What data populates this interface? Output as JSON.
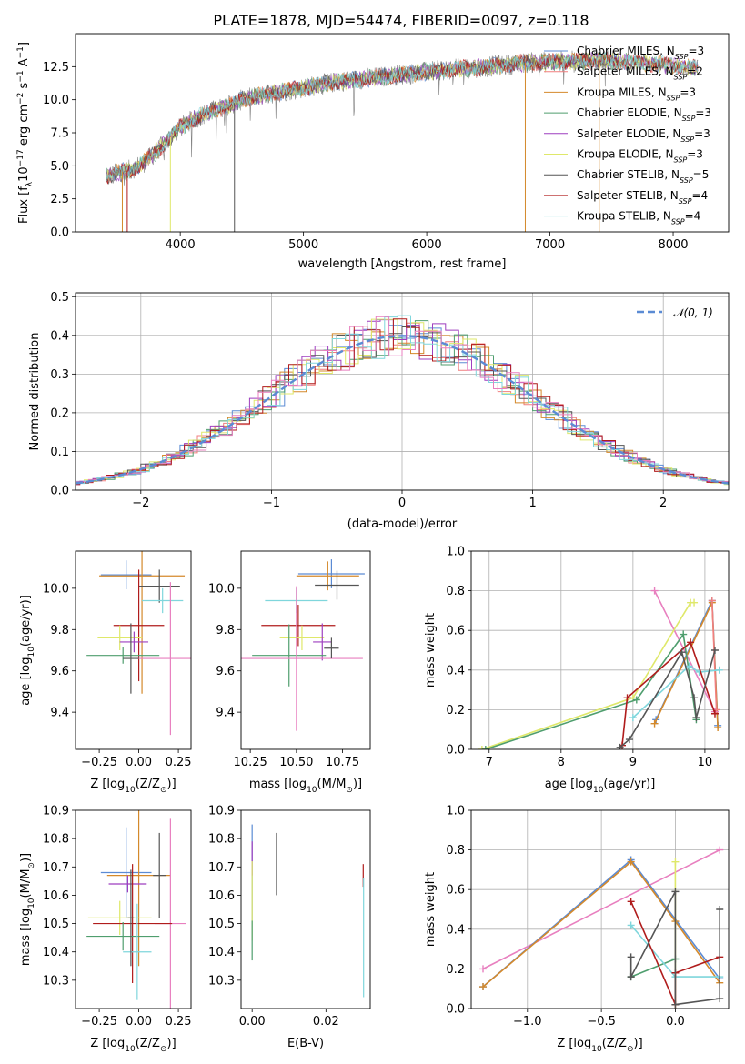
{
  "figure_title": "PLATE=1878, MJD=54474, FIBERID=0097, z=0.118",
  "colors": {
    "Chabrier MILES": "#5b8bd4",
    "Salpeter MILES": "#f07f7f",
    "Kroupa MILES": "#d4892b",
    "Chabrier ELODIE": "#4f9e6e",
    "Salpeter ELODIE": "#9e3fbf",
    "Kroupa ELODIE": "#dfe86a",
    "Chabrier STELIB": "#555555",
    "Salpeter STELIB": "#b01c1c",
    "Kroupa STELIB": "#7fd6dc",
    "Pink": "#e87fbf",
    "Orange": "#e87a26",
    "Normal": "#5b8bd4"
  },
  "chart_data": [
    {
      "id": "spectrum",
      "type": "line",
      "title": "PLATE=1878, MJD=54474, FIBERID=0097, z=0.118",
      "xlabel": "wavelength [Angstrom, rest frame]",
      "ylabel_parts": [
        "Flux [f",
        "λ",
        "10",
        "−17",
        " erg cm",
        "−2",
        " s",
        "−1",
        " A",
        "−1",
        "]"
      ],
      "xlim": [
        3150,
        8450
      ],
      "ylim": [
        0,
        15
      ],
      "xticks": [
        4000,
        5000,
        6000,
        7000,
        8000
      ],
      "yticks": [
        0.0,
        2.5,
        5.0,
        7.5,
        10.0,
        12.5
      ],
      "ytick_labels": [
        "0.0",
        "2.5",
        "5.0",
        "7.5",
        "10.0",
        "12.5"
      ],
      "legend_position": "top-right",
      "continuum": {
        "x": [
          3400,
          3500,
          3600,
          3700,
          3800,
          3900,
          4000,
          4100,
          4200,
          4300,
          4400,
          4500,
          4700,
          5000,
          5300,
          5600,
          5900,
          6200,
          6500,
          6800,
          7100,
          7400,
          7700,
          8000,
          8200
        ],
        "y": [
          4.2,
          4.5,
          4.7,
          5.2,
          6.0,
          7.0,
          7.9,
          8.5,
          8.9,
          9.3,
          9.6,
          10.0,
          10.4,
          10.9,
          11.4,
          11.7,
          12.0,
          12.3,
          12.5,
          12.8,
          12.9,
          13.0,
          12.8,
          12.6,
          12.4
        ]
      },
      "noise_range": [
        3400,
        7550
      ],
      "model_range": [
        3400,
        8200
      ],
      "dips": [
        {
          "x": 3530,
          "series": "Kroupa MILES"
        },
        {
          "x": 3570,
          "series": "Salpeter STELIB"
        },
        {
          "x": 3920,
          "series": "Kroupa ELODIE"
        },
        {
          "x": 4440,
          "series": "Chabrier STELIB"
        },
        {
          "x": 6800,
          "series": "Kroupa MILES"
        },
        {
          "x": 7400,
          "series": "Kroupa MILES"
        }
      ],
      "legend": [
        {
          "base": "Chabrier MILES, N",
          "sub": "SSP",
          "tail": "=3"
        },
        {
          "base": "Salpeter MILES, N",
          "sub": "SSP",
          "tail": "=2"
        },
        {
          "base": "Kroupa MILES, N",
          "sub": "SSP",
          "tail": "=3"
        },
        {
          "base": "Chabrier ELODIE, N",
          "sub": "SSP",
          "tail": "=3"
        },
        {
          "base": "Salpeter ELODIE, N",
          "sub": "SSP",
          "tail": "=3"
        },
        {
          "base": "Kroupa ELODIE, N",
          "sub": "SSP",
          "tail": "=3"
        },
        {
          "base": "Chabrier STELIB, N",
          "sub": "SSP",
          "tail": "=5"
        },
        {
          "base": "Salpeter STELIB, N",
          "sub": "SSP",
          "tail": "=4"
        },
        {
          "base": "Kroupa STELIB, N",
          "sub": "SSP",
          "tail": "=4"
        }
      ],
      "series_names": [
        "Chabrier MILES",
        "Salpeter MILES",
        "Kroupa MILES",
        "Chabrier ELODIE",
        "Salpeter ELODIE",
        "Kroupa ELODIE",
        "Chabrier STELIB",
        "Salpeter STELIB",
        "Kroupa STELIB"
      ]
    },
    {
      "id": "residuals",
      "type": "line",
      "xlabel": "(data-model)/error",
      "ylabel": "Normed distribution",
      "xlim": [
        -2.5,
        2.5
      ],
      "ylim": [
        0,
        0.51
      ],
      "xticks": [
        -2,
        -1,
        0,
        1,
        2
      ],
      "xtick_labels": [
        "−2",
        "−1",
        "0",
        "1",
        "2"
      ],
      "yticks": [
        0.0,
        0.1,
        0.2,
        0.3,
        0.4,
        0.5
      ],
      "ytick_labels": [
        "0.0",
        "0.1",
        "0.2",
        "0.3",
        "0.4",
        "0.5"
      ],
      "legend_label": "𝒩(0, 1)",
      "legend_position": "top-right",
      "grid": true,
      "bin_width": 0.1,
      "histogram_shape": "step histograms, one per model, close to N(0,1)"
    },
    {
      "id": "age_vs_Z",
      "type": "scatter",
      "xlabel": "Z [log",
      "xlabel_parts": [
        "Z [log",
        "10",
        "(Z/Z",
        "⊙",
        ")]"
      ],
      "ylabel_parts": [
        "age  [log",
        "10",
        "(age/yr)]"
      ],
      "xlim": [
        -0.4,
        0.33
      ],
      "ylim": [
        9.22,
        10.18
      ],
      "xticks": [
        -0.25,
        0.0,
        0.25
      ],
      "xtick_labels": [
        "−0.25",
        "0.00",
        "0.25"
      ],
      "yticks": [
        9.4,
        9.6,
        9.8,
        10.0
      ],
      "ytick_labels": [
        "9.4",
        "9.6",
        "9.8",
        "10.0"
      ],
      "points": [
        {
          "series": "Chabrier MILES",
          "x": -0.08,
          "xerr": 0.16,
          "y": 10.065,
          "yerr": 0.07
        },
        {
          "series": "Kroupa MILES",
          "x": 0.02,
          "xerr": 0.27,
          "y": 10.06,
          "yerr": 0.57
        },
        {
          "series": "Chabrier STELIB",
          "x": 0.13,
          "xerr": 0.13,
          "y": 10.01,
          "yerr": 0.08
        },
        {
          "series": "Kroupa STELIB",
          "x": 0.15,
          "xerr": 0.13,
          "y": 9.94,
          "yerr": 0.06
        },
        {
          "series": "Salpeter STELIB",
          "x": 0.0,
          "xerr": 0.16,
          "y": 9.82,
          "yerr": 0.27
        },
        {
          "series": "Kroupa ELODIE",
          "x": -0.12,
          "xerr": 0.14,
          "y": 9.76,
          "yerr": 0.06
        },
        {
          "series": "Salpeter ELODIE",
          "x": -0.03,
          "xerr": 0.09,
          "y": 9.74,
          "yerr": 0.05
        },
        {
          "series": "Chabrier ELODIE",
          "x": -0.1,
          "xerr": 0.23,
          "y": 9.675,
          "yerr": 0.04
        },
        {
          "series": "Pink",
          "x": 0.2,
          "xerr": 0.21,
          "y": 9.66,
          "yerr": 0.37
        },
        {
          "series": "Chabrier STELIB",
          "x": -0.05,
          "xerr": 0.05,
          "y": 9.66,
          "yerr": 0.17
        }
      ]
    },
    {
      "id": "age_vs_mass",
      "type": "scatter",
      "xlabel_parts": [
        "mass [log",
        "10",
        "(M/M",
        "⊙",
        ")]"
      ],
      "xlim": [
        10.2,
        10.9
      ],
      "ylim": [
        9.22,
        10.18
      ],
      "xticks": [
        10.25,
        10.5,
        10.75
      ],
      "xtick_labels": [
        "10.25",
        "10.50",
        "10.75"
      ],
      "yticks": [
        9.4,
        9.6,
        9.8,
        10.0
      ],
      "ytick_labels": [
        "9.4",
        "9.6",
        "9.8",
        "10.0"
      ],
      "points": [
        {
          "series": "Chabrier MILES",
          "x": 10.69,
          "xerr": 0.18,
          "y": 10.07,
          "yerr": 0.07
        },
        {
          "series": "Kroupa MILES",
          "x": 10.67,
          "xerr": 0.17,
          "y": 10.06,
          "yerr": 0.07
        },
        {
          "series": "Chabrier STELIB",
          "x": 10.72,
          "xerr": 0.12,
          "y": 10.015,
          "yerr": 0.07
        },
        {
          "series": "Kroupa STELIB",
          "x": 10.5,
          "xerr": 0.17,
          "y": 9.94,
          "yerr": 0.06
        },
        {
          "series": "Salpeter STELIB",
          "x": 10.51,
          "xerr": 0.2,
          "y": 9.82,
          "yerr": 0.1
        },
        {
          "series": "Kroupa ELODIE",
          "x": 10.53,
          "xerr": 0.12,
          "y": 9.76,
          "yerr": 0.06
        },
        {
          "series": "Salpeter ELODIE",
          "x": 10.64,
          "xerr": 0.05,
          "y": 9.74,
          "yerr": 0.09
        },
        {
          "series": "Chabrier ELODIE",
          "x": 10.46,
          "xerr": 0.2,
          "y": 9.675,
          "yerr": 0.15
        },
        {
          "series": "Pink",
          "x": 10.5,
          "xerr": 0.36,
          "y": 9.66,
          "yerr": 0.35
        },
        {
          "series": "Chabrier STELIB",
          "x": 10.69,
          "xerr": 0.04,
          "y": 9.71,
          "yerr": 0.05
        }
      ]
    },
    {
      "id": "massweight_vs_age",
      "type": "line",
      "xlabel_parts": [
        "age  [log",
        "10",
        "(age/yr)]"
      ],
      "ylabel": "mass weight",
      "xlim": [
        6.75,
        10.33
      ],
      "ylim": [
        0,
        1
      ],
      "xticks": [
        7,
        8,
        9,
        10
      ],
      "yticks": [
        0.0,
        0.2,
        0.4,
        0.6,
        0.8,
        1.0
      ],
      "ytick_labels": [
        "0.0",
        "0.2",
        "0.4",
        "0.6",
        "0.8",
        "1.0"
      ],
      "grid": true,
      "series": [
        {
          "name": "Chabrier MILES",
          "x": [
            9.32,
            10.1,
            10.18
          ],
          "y": [
            0.15,
            0.75,
            0.12
          ]
        },
        {
          "name": "Kroupa MILES",
          "x": [
            9.3,
            10.1,
            10.18
          ],
          "y": [
            0.13,
            0.74,
            0.11
          ]
        },
        {
          "name": "Salpeter MILES",
          "x": [
            10.1,
            10.16
          ],
          "y": [
            0.75,
            0.2
          ]
        },
        {
          "name": "Pink",
          "x": [
            9.3,
            10.14
          ],
          "y": [
            0.8,
            0.19
          ]
        },
        {
          "name": "Kroupa ELODIE",
          "x": [
            6.9,
            9.0,
            9.8,
            9.85
          ],
          "y": [
            0.0,
            0.26,
            0.74,
            0.74
          ]
        },
        {
          "name": "Chabrier ELODIE",
          "x": [
            6.95,
            9.05,
            9.7,
            9.88
          ],
          "y": [
            0.0,
            0.25,
            0.58,
            0.15
          ]
        },
        {
          "name": "Kroupa STELIB",
          "x": [
            9.0,
            9.78,
            9.92,
            10.2
          ],
          "y": [
            0.16,
            0.42,
            0.39,
            0.4
          ]
        },
        {
          "name": "Salpeter STELIB",
          "x": [
            8.85,
            8.92,
            9.8,
            10.14
          ],
          "y": [
            0.02,
            0.26,
            0.54,
            0.18
          ]
        },
        {
          "name": "Chabrier STELIB",
          "x": [
            8.82,
            8.95,
            9.68,
            9.85,
            9.88,
            10.14
          ],
          "y": [
            0.01,
            0.05,
            0.49,
            0.26,
            0.16,
            0.5
          ]
        }
      ]
    },
    {
      "id": "mass_vs_Z",
      "type": "scatter",
      "xlabel_parts": [
        "Z [log",
        "10",
        "(Z/Z",
        "⊙",
        ")]"
      ],
      "ylabel_parts": [
        "mass [log",
        "10",
        "(M/M",
        "⊙",
        ")]"
      ],
      "xlim": [
        -0.4,
        0.33
      ],
      "ylim": [
        10.2,
        10.9
      ],
      "xticks": [
        -0.25,
        0.0,
        0.25
      ],
      "xtick_labels": [
        "−0.25",
        "0.00",
        "0.25"
      ],
      "yticks": [
        10.3,
        10.4,
        10.5,
        10.6,
        10.7,
        10.8,
        10.9
      ],
      "ytick_labels": [
        "10.3",
        "10.4",
        "10.5",
        "10.6",
        "10.7",
        "10.8",
        "10.9"
      ],
      "points": [
        {
          "series": "Chabrier MILES",
          "x": -0.08,
          "xerr": 0.16,
          "y": 10.68,
          "yerr": 0.16
        },
        {
          "series": "Kroupa MILES",
          "x": 0.0,
          "xerr": 0.2,
          "y": 10.67,
          "yerr": 0.32
        },
        {
          "series": "Salpeter ELODIE",
          "x": -0.07,
          "xerr": 0.12,
          "y": 10.64,
          "yerr": 0.03
        },
        {
          "series": "Chabrier STELIB",
          "x": 0.13,
          "xerr": 0.04,
          "y": 10.67,
          "yerr": 0.15
        },
        {
          "series": "Kroupa ELODIE",
          "x": -0.12,
          "xerr": 0.2,
          "y": 10.52,
          "yerr": 0.06
        },
        {
          "series": "Pink",
          "x": 0.2,
          "xerr": 0.1,
          "y": 10.5,
          "yerr": 0.37
        },
        {
          "series": "Salpeter STELIB",
          "x": -0.04,
          "xerr": 0.25,
          "y": 10.5,
          "yerr": 0.21
        },
        {
          "series": "Chabrier ELODIE",
          "x": -0.1,
          "xerr": 0.23,
          "y": 10.455,
          "yerr": 0.05
        },
        {
          "series": "Kroupa STELIB",
          "x": -0.01,
          "xerr": 0.09,
          "y": 10.4,
          "yerr": 0.17
        },
        {
          "series": "Chabrier STELIB",
          "x": -0.05,
          "xerr": 0.02,
          "y": 10.52,
          "yerr": 0.17
        }
      ]
    },
    {
      "id": "mass_vs_ebv",
      "type": "scatter",
      "xlabel": "E(B-V)",
      "xlim": [
        -0.003,
        0.032
      ],
      "ylim": [
        10.2,
        10.9
      ],
      "xticks": [
        0.0,
        0.02
      ],
      "xtick_labels": [
        "0.00",
        "0.02"
      ],
      "yticks": [
        10.3,
        10.4,
        10.5,
        10.6,
        10.7,
        10.8,
        10.9
      ],
      "ytick_labels": [
        "10.3",
        "10.4",
        "10.5",
        "10.6",
        "10.7",
        "10.8",
        "10.9"
      ],
      "points": [
        {
          "series": "Chabrier MILES",
          "x": 0.0,
          "xerr": 0.0,
          "y": 10.68,
          "yerr": 0.17
        },
        {
          "series": "Salpeter ELODIE",
          "x": 0.0,
          "xerr": 0.0,
          "y": 10.73,
          "yerr": 0.06
        },
        {
          "series": "Kroupa ELODIE",
          "x": 0.0,
          "xerr": 0.0,
          "y": 10.58,
          "yerr": 0.14
        },
        {
          "series": "Chabrier ELODIE",
          "x": 0.0,
          "xerr": 0.0,
          "y": 10.44,
          "yerr": 0.07
        },
        {
          "series": "Chabrier STELIB",
          "x": 0.0066,
          "xerr": 0.0,
          "y": 10.71,
          "yerr": 0.11
        },
        {
          "series": "Salpeter STELIB",
          "x": 0.0301,
          "xerr": 0.0,
          "y": 10.67,
          "yerr": 0.04
        },
        {
          "series": "Kroupa STELIB",
          "x": 0.0302,
          "xerr": 0.0,
          "y": 10.45,
          "yerr": 0.21
        }
      ]
    },
    {
      "id": "massweight_vs_Z",
      "type": "line",
      "xlabel_parts": [
        "Z [log",
        "10",
        "(Z/Z",
        "⊙",
        ")]"
      ],
      "ylabel": "mass weight",
      "xlim": [
        -1.38,
        0.36
      ],
      "ylim": [
        0,
        1
      ],
      "xticks": [
        -1.0,
        -0.5,
        0.0
      ],
      "xtick_labels": [
        "−1.0",
        "−0.5",
        "0.0"
      ],
      "yticks": [
        0.0,
        0.2,
        0.4,
        0.6,
        0.8,
        1.0
      ],
      "ytick_labels": [
        "0.0",
        "0.2",
        "0.4",
        "0.6",
        "0.8",
        "1.0"
      ],
      "grid": true,
      "series": [
        {
          "name": "Pink",
          "x": [
            -1.3,
            0.3
          ],
          "y": [
            0.2,
            0.8
          ]
        },
        {
          "name": "Chabrier MILES",
          "x": [
            -1.3,
            -0.3,
            0.3
          ],
          "y": [
            0.11,
            0.75,
            0.15
          ]
        },
        {
          "name": "Kroupa MILES",
          "x": [
            -1.3,
            -0.3,
            0.0,
            0.3
          ],
          "y": [
            0.11,
            0.74,
            0.44,
            0.13
          ]
        },
        {
          "name": "Kroupa ELODIE",
          "x": [
            0.0,
            0.0
          ],
          "y": [
            0.74,
            0.02
          ]
        },
        {
          "name": "Chabrier ELODIE",
          "x": [
            -0.3,
            0.0
          ],
          "y": [
            0.16,
            0.25
          ]
        },
        {
          "name": "Kroupa STELIB",
          "x": [
            -0.3,
            0.0,
            0.3
          ],
          "y": [
            0.42,
            0.16,
            0.16
          ]
        },
        {
          "name": "Salpeter STELIB",
          "x": [
            -0.3,
            0.0,
            0.0,
            0.3
          ],
          "y": [
            0.54,
            0.02,
            0.18,
            0.26
          ]
        },
        {
          "name": "Chabrier STELIB",
          "x": [
            -0.3,
            -0.3,
            0.0,
            0.0,
            0.3,
            0.3
          ],
          "y": [
            0.26,
            0.16,
            0.59,
            0.02,
            0.05,
            0.5
          ]
        }
      ]
    }
  ]
}
